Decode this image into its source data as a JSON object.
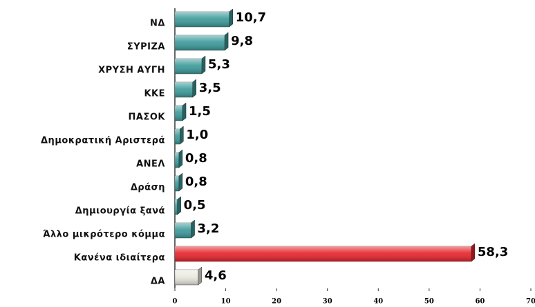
{
  "chart_data": {
    "type": "bar",
    "orientation": "horizontal",
    "categories": [
      "ΝΔ",
      "ΣΥΡΙΖΑ",
      "ΧΡΥΣΗ ΑΥΓΗ",
      "ΚΚΕ",
      "ΠΑΣΟΚ",
      "Δημοκρατική Αριστερά",
      "ΑΝΕΛ",
      "Δράση",
      "Δημιουργία ξανά",
      "Άλλο μικρότερο κόμμα",
      "Κανένα ιδιαίτερα",
      "ΔΑ"
    ],
    "values": [
      10.7,
      9.8,
      5.3,
      3.5,
      1.5,
      1.0,
      0.8,
      0.8,
      0.5,
      3.2,
      58.3,
      4.6
    ],
    "value_labels": [
      "10,7",
      "9,8",
      "5,3",
      "3,5",
      "1,5",
      "1,0",
      "0,8",
      "0,8",
      "0,5",
      "3,2",
      "58,3",
      "4,6"
    ],
    "colors": [
      "#3a9999",
      "#3a9999",
      "#3a9999",
      "#3a9999",
      "#3a9999",
      "#3a9999",
      "#3a9999",
      "#3a9999",
      "#3a9999",
      "#3a9999",
      "#e62129",
      "#e9e8df"
    ],
    "xlim": [
      0,
      70
    ],
    "xticks": [
      0,
      10,
      20,
      30,
      40,
      50,
      60,
      70
    ],
    "grid": false
  }
}
